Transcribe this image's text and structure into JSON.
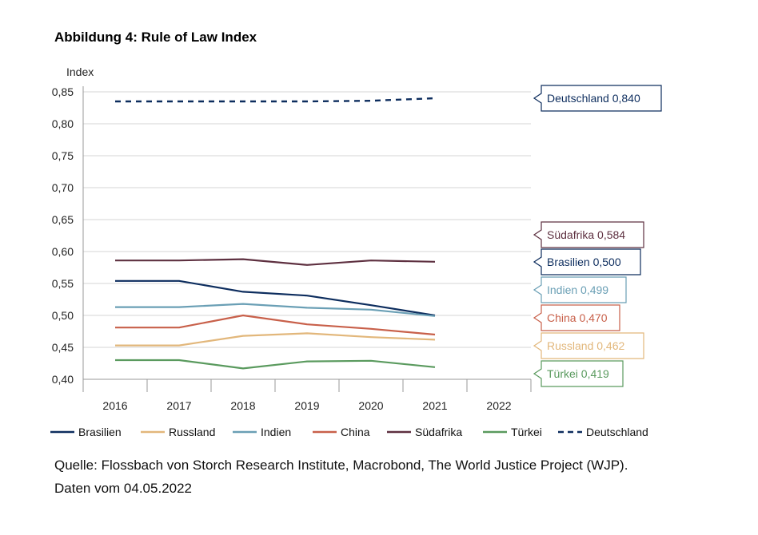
{
  "chart_data": {
    "type": "line",
    "title": "Abbildung 4: Rule of Law Index",
    "ylabel": "Index",
    "xlabel": "",
    "ylim": [
      0.4,
      0.85
    ],
    "y_ticks": [
      "0,85",
      "0,80",
      "0,75",
      "0,70",
      "0,65",
      "0,60",
      "0,55",
      "0,50",
      "0,45",
      "0,40"
    ],
    "y_tick_values": [
      0.85,
      0.8,
      0.75,
      0.7,
      0.65,
      0.6,
      0.55,
      0.5,
      0.45,
      0.4
    ],
    "categories": [
      "2016",
      "2017",
      "2018",
      "2019",
      "2020",
      "2021",
      "2022"
    ],
    "grid": true,
    "legend_position": "bottom",
    "series": [
      {
        "name": "Brasilien",
        "color": "#0d2d5e",
        "dashed": false,
        "values": [
          0.554,
          0.554,
          0.537,
          0.531,
          0.516,
          0.5,
          null
        ],
        "callout": "Brasilien 0,500"
      },
      {
        "name": "Russland",
        "color": "#e2b77b",
        "dashed": false,
        "values": [
          0.453,
          0.453,
          0.468,
          0.472,
          0.466,
          0.462,
          null
        ],
        "callout": "Russland 0,462"
      },
      {
        "name": "Indien",
        "color": "#6a9fb5",
        "dashed": false,
        "values": [
          0.513,
          0.513,
          0.518,
          0.512,
          0.509,
          0.499,
          null
        ],
        "callout": "Indien 0,499"
      },
      {
        "name": "China",
        "color": "#c8604a",
        "dashed": false,
        "values": [
          0.481,
          0.481,
          0.5,
          0.486,
          0.479,
          0.47,
          null
        ],
        "callout": "China 0,470"
      },
      {
        "name": "Südafrika",
        "color": "#5e3040",
        "dashed": false,
        "values": [
          0.586,
          0.586,
          0.588,
          0.579,
          0.586,
          0.584,
          null
        ],
        "callout": "Südafrika 0,584"
      },
      {
        "name": "Türkei",
        "color": "#5a9a5e",
        "dashed": false,
        "values": [
          0.43,
          0.43,
          0.417,
          0.428,
          0.429,
          0.419,
          null
        ],
        "callout": "Türkei 0,419"
      },
      {
        "name": "Deutschland",
        "color": "#0d2d5e",
        "dashed": true,
        "values": [
          0.835,
          0.835,
          0.835,
          0.835,
          0.836,
          0.84,
          null
        ],
        "callout": "Deutschland 0,840"
      }
    ]
  },
  "source": {
    "line1": "Quelle: Flossbach von Storch Research Institute, Macrobond, The World Justice Project (WJP).",
    "line2": "Daten vom 04.05.2022"
  }
}
